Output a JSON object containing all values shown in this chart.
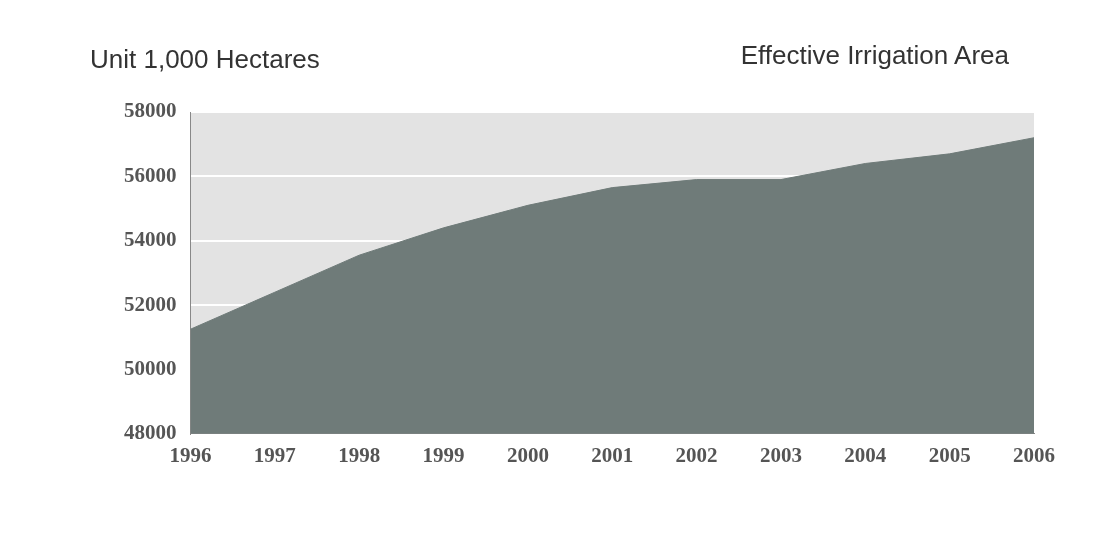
{
  "chart_data": {
    "type": "area",
    "title": "Effective Irrigation Area",
    "ylabel": "Unit 1,000 Hectares",
    "x": [
      1996,
      1997,
      1998,
      1999,
      2000,
      2001,
      2002,
      2003,
      2004,
      2005,
      2006
    ],
    "series": [
      {
        "color": "#6f7b79",
        "values": [
          51250,
          52400,
          53550,
          54400,
          55100,
          55650,
          55900,
          55900,
          56400,
          56700,
          57200
        ]
      }
    ],
    "xlim": [
      1996,
      2006
    ],
    "xticks": [
      1996,
      1997,
      1998,
      1999,
      2000,
      2001,
      2002,
      2003,
      2004,
      2005,
      2006
    ],
    "ylim": [
      48000,
      58000
    ],
    "yticks": [
      48000,
      50000,
      52000,
      54000,
      56000,
      58000
    ],
    "grid": "y",
    "legend": false,
    "marker": "none"
  }
}
